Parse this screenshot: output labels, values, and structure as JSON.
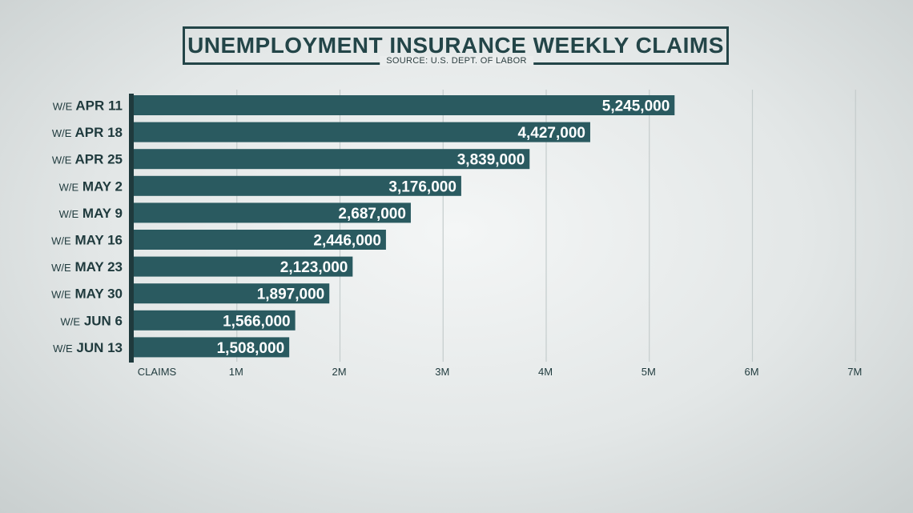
{
  "title": "UNEMPLOYMENT INSURANCE WEEKLY CLAIMS",
  "source": "SOURCE: U.S. DEPT. OF LABOR",
  "colors": {
    "bar": "#2a5a60",
    "axis": "#1f3a3d",
    "grid": "#c4cccc",
    "text": "#234548"
  },
  "chart_data": {
    "type": "bar",
    "orientation": "horizontal",
    "categories": [
      {
        "prefix": "W/E",
        "label": "APR 11"
      },
      {
        "prefix": "W/E",
        "label": "APR 18"
      },
      {
        "prefix": "W/E",
        "label": "APR 25"
      },
      {
        "prefix": "W/E",
        "label": "MAY 2"
      },
      {
        "prefix": "W/E",
        "label": "MAY 9"
      },
      {
        "prefix": "W/E",
        "label": "MAY 16"
      },
      {
        "prefix": "W/E",
        "label": "MAY 23"
      },
      {
        "prefix": "W/E",
        "label": "MAY 30"
      },
      {
        "prefix": "W/E",
        "label": "JUN 6"
      },
      {
        "prefix": "W/E",
        "label": "JUN 13"
      }
    ],
    "values": [
      5245000,
      4427000,
      3839000,
      3176000,
      2687000,
      2446000,
      2123000,
      1897000,
      1566000,
      1508000
    ],
    "value_labels": [
      "5,245,000",
      "4,427,000",
      "3,839,000",
      "3,176,000",
      "2,687,000",
      "2,446,000",
      "2,123,000",
      "1,897,000",
      "1,566,000",
      "1,508,000"
    ],
    "xlabel": "CLAIMS",
    "xlim": [
      0,
      7000000
    ],
    "x_ticks": [
      {
        "value": 1000000,
        "label": "1M"
      },
      {
        "value": 2000000,
        "label": "2M"
      },
      {
        "value": 3000000,
        "label": "3M"
      },
      {
        "value": 4000000,
        "label": "4M"
      },
      {
        "value": 5000000,
        "label": "5M"
      },
      {
        "value": 6000000,
        "label": "6M"
      },
      {
        "value": 7000000,
        "label": "7M"
      }
    ],
    "grid": true
  }
}
